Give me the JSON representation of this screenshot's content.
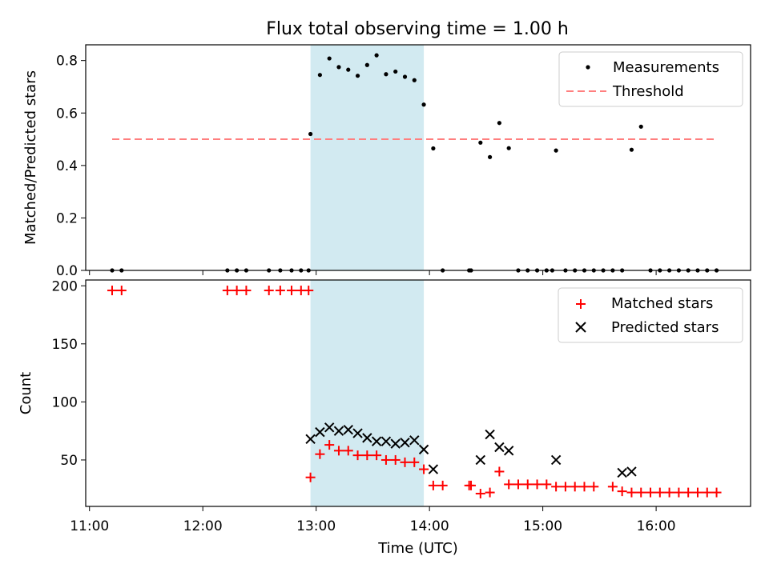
{
  "chart_data": [
    {
      "type": "scatter",
      "title": "Flux total observing time = 1.00 h",
      "xlabel": "",
      "ylabel": "Matched/Predicted stars",
      "xlim": [
        "10:58",
        "16:50"
      ],
      "ylim": [
        0,
        0.86
      ],
      "yticks": [
        0.0,
        0.2,
        0.4,
        0.6,
        0.8
      ],
      "ytick_labels": [
        "0.0",
        "0.2",
        "0.4",
        "0.6",
        "0.8"
      ],
      "highlight_span": {
        "x0": "12:57",
        "x1": "13:57",
        "color": "#add8e6"
      },
      "legend": {
        "position": "top-right",
        "entries": [
          "Measurements",
          "Threshold"
        ]
      },
      "series": [
        {
          "name": "Measurements",
          "marker": "dot",
          "color": "#000000",
          "x": [
            "11:12",
            "11:17",
            "12:13",
            "12:18",
            "12:23",
            "12:35",
            "12:41",
            "12:47",
            "12:52",
            "12:56",
            "12:57",
            "13:02",
            "13:07",
            "13:12",
            "13:17",
            "13:22",
            "13:27",
            "13:32",
            "13:37",
            "13:42",
            "13:47",
            "13:52",
            "13:57",
            "14:02",
            "14:07",
            "14:21",
            "14:22",
            "14:27",
            "14:32",
            "14:37",
            "14:42",
            "14:47",
            "14:52",
            "14:57",
            "15:02",
            "15:05",
            "15:07",
            "15:12",
            "15:17",
            "15:22",
            "15:27",
            "15:32",
            "15:37",
            "15:42",
            "15:47",
            "15:52",
            "15:57",
            "16:02",
            "16:07",
            "16:12",
            "16:17",
            "16:22",
            "16:27",
            "16:32"
          ],
          "y": [
            0.0,
            0.0,
            0.0,
            0.0,
            0.0,
            0.0,
            0.0,
            0.0,
            0.0,
            0.0,
            0.52,
            0.745,
            0.808,
            0.775,
            0.765,
            0.742,
            0.783,
            0.82,
            0.748,
            0.758,
            0.738,
            0.725,
            0.632,
            0.465,
            0.0,
            0.0,
            0.0,
            0.487,
            0.432,
            0.562,
            0.466,
            0.0,
            0.0,
            0.0,
            0.0,
            0.0,
            0.457,
            0.0,
            0.0,
            0.0,
            0.0,
            0.0,
            0.0,
            0.0,
            0.46,
            0.548,
            0.0,
            0.0,
            0.0,
            0.0,
            0.0,
            0.0,
            0.0,
            0.0
          ]
        },
        {
          "name": "Threshold",
          "marker": "dashed-line",
          "color": "#ff7f7f",
          "x": [
            "11:12",
            "16:32"
          ],
          "y": [
            0.5,
            0.5
          ]
        }
      ]
    },
    {
      "type": "scatter",
      "xlabel": "Time (UTC)",
      "ylabel": "Count",
      "xlim": [
        "10:58",
        "16:50"
      ],
      "ylim": [
        10,
        205
      ],
      "xticks": [
        "11:00",
        "12:00",
        "13:00",
        "14:00",
        "15:00",
        "16:00"
      ],
      "yticks": [
        50,
        100,
        150,
        200
      ],
      "ytick_labels": [
        "50",
        "100",
        "150",
        "200"
      ],
      "highlight_span": {
        "x0": "12:57",
        "x1": "13:57",
        "color": "#add8e6"
      },
      "legend": {
        "position": "top-right",
        "entries": [
          "Matched stars",
          "Predicted stars"
        ]
      },
      "series": [
        {
          "name": "Matched stars",
          "marker": "plus",
          "color": "#ff0000",
          "x": [
            "11:12",
            "11:17",
            "12:13",
            "12:18",
            "12:23",
            "12:35",
            "12:41",
            "12:47",
            "12:52",
            "12:56",
            "12:57",
            "13:02",
            "13:07",
            "13:12",
            "13:17",
            "13:22",
            "13:27",
            "13:32",
            "13:37",
            "13:42",
            "13:47",
            "13:52",
            "13:57",
            "14:02",
            "14:07",
            "14:21",
            "14:22",
            "14:27",
            "14:32",
            "14:37",
            "14:42",
            "14:47",
            "14:52",
            "14:57",
            "15:02",
            "15:07",
            "15:12",
            "15:17",
            "15:22",
            "15:27",
            "15:37",
            "15:42",
            "15:47",
            "15:52",
            "15:57",
            "16:02",
            "16:07",
            "16:12",
            "16:17",
            "16:22",
            "16:27",
            "16:32"
          ],
          "y": [
            196,
            196,
            196,
            196,
            196,
            196,
            196,
            196,
            196,
            196,
            35,
            55,
            63,
            58,
            58,
            54,
            54,
            54,
            50,
            50,
            48,
            48,
            42,
            28,
            28,
            28,
            28,
            21,
            22,
            40,
            29,
            29,
            29,
            29,
            29,
            27,
            27,
            27,
            27,
            27,
            27,
            23,
            22,
            22,
            22,
            22,
            22,
            22,
            22,
            22,
            22,
            22
          ]
        },
        {
          "name": "Predicted stars",
          "marker": "x",
          "color": "#000000",
          "x": [
            "12:57",
            "13:02",
            "13:07",
            "13:12",
            "13:17",
            "13:22",
            "13:27",
            "13:32",
            "13:37",
            "13:42",
            "13:47",
            "13:52",
            "13:57",
            "14:02",
            "14:27",
            "14:32",
            "14:37",
            "14:42",
            "15:07",
            "15:42",
            "15:47"
          ],
          "y": [
            68,
            74,
            78,
            75,
            76,
            73,
            69,
            66,
            66,
            64,
            65,
            67,
            59,
            42,
            50,
            72,
            61,
            58,
            50,
            39,
            40
          ]
        }
      ]
    }
  ]
}
